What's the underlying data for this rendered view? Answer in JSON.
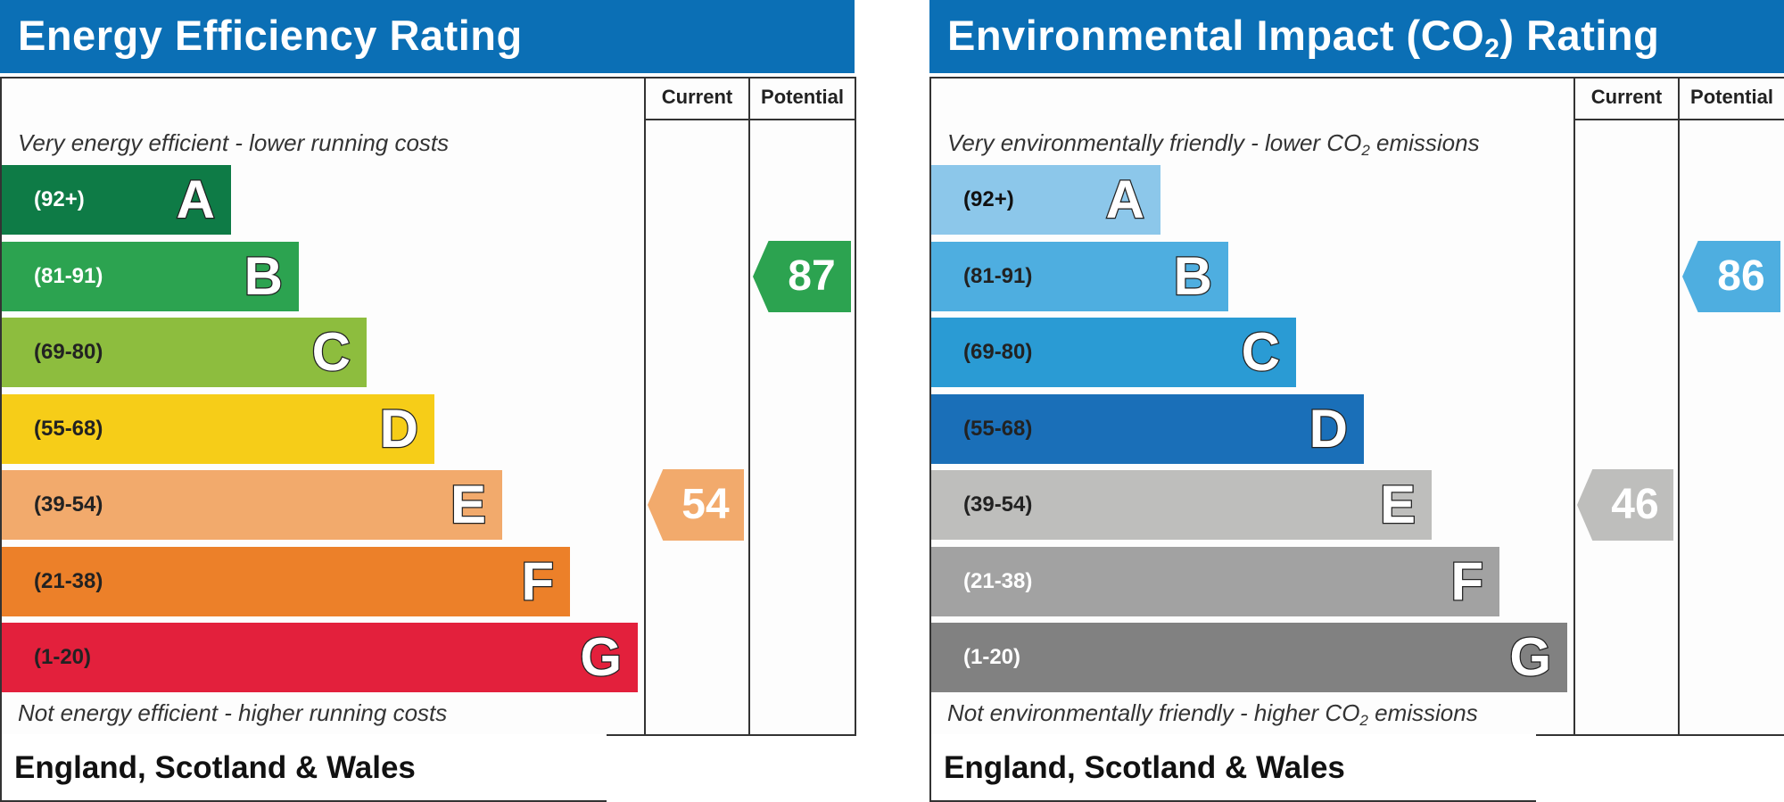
{
  "chart_data": [
    {
      "type": "bar",
      "title": "Energy Efficiency Rating",
      "columns": [
        "Current",
        "Potential"
      ],
      "top_note": "Very energy efficient - lower running costs",
      "bottom_note": "Not energy efficient - higher running costs",
      "footer": "England, Scotland & Wales",
      "bands": [
        {
          "letter": "A",
          "range": "(92+)",
          "color": "#0e7b46",
          "text_color": "#ffffff"
        },
        {
          "letter": "B",
          "range": "(81-91)",
          "color": "#2ca350",
          "text_color": "#ffffff"
        },
        {
          "letter": "C",
          "range": "(69-80)",
          "color": "#8dbd3e",
          "text_color": "#222222"
        },
        {
          "letter": "D",
          "range": "(55-68)",
          "color": "#f6cd18",
          "text_color": "#222222"
        },
        {
          "letter": "E",
          "range": "(39-54)",
          "color": "#f2aa6c",
          "text_color": "#222222"
        },
        {
          "letter": "F",
          "range": "(21-38)",
          "color": "#ec8029",
          "text_color": "#222222"
        },
        {
          "letter": "G",
          "range": "(1-20)",
          "color": "#e3203c",
          "text_color": "#222222"
        }
      ],
      "current": {
        "value": 54,
        "band": "E",
        "color": "#f2aa6c"
      },
      "potential": {
        "value": 87,
        "band": "B",
        "color": "#2ca350"
      }
    },
    {
      "type": "bar",
      "title": "Environmental Impact (CO",
      "title_sub": "2",
      "title_end": ") Rating",
      "columns": [
        "Current",
        "Potential"
      ],
      "top_note": "Very environmentally friendly - lower CO",
      "top_note_sub": "2",
      "top_note_end": " emissions",
      "bottom_note": "Not environmentally friendly - higher CO",
      "bottom_note_sub": "2",
      "bottom_note_end": " emissions",
      "footer": "England, Scotland & Wales",
      "bands": [
        {
          "letter": "A",
          "range": "(92+)",
          "color": "#8cc7ea",
          "text_color": "#111111"
        },
        {
          "letter": "B",
          "range": "(81-91)",
          "color": "#4eaee0",
          "text_color": "#222222"
        },
        {
          "letter": "C",
          "range": "(69-80)",
          "color": "#2a9bd4",
          "text_color": "#222222"
        },
        {
          "letter": "D",
          "range": "(55-68)",
          "color": "#1a6fb8",
          "text_color": "#222222"
        },
        {
          "letter": "E",
          "range": "(39-54)",
          "color": "#bebebc",
          "text_color": "#222222"
        },
        {
          "letter": "F",
          "range": "(21-38)",
          "color": "#a2a2a2",
          "text_color": "#ffffff"
        },
        {
          "letter": "G",
          "range": "(1-20)",
          "color": "#818181",
          "text_color": "#ffffff"
        }
      ],
      "current": {
        "value": 46,
        "band": "E",
        "color": "#bebebc"
      },
      "potential": {
        "value": 86,
        "band": "B",
        "color": "#4eaee0"
      }
    }
  ]
}
